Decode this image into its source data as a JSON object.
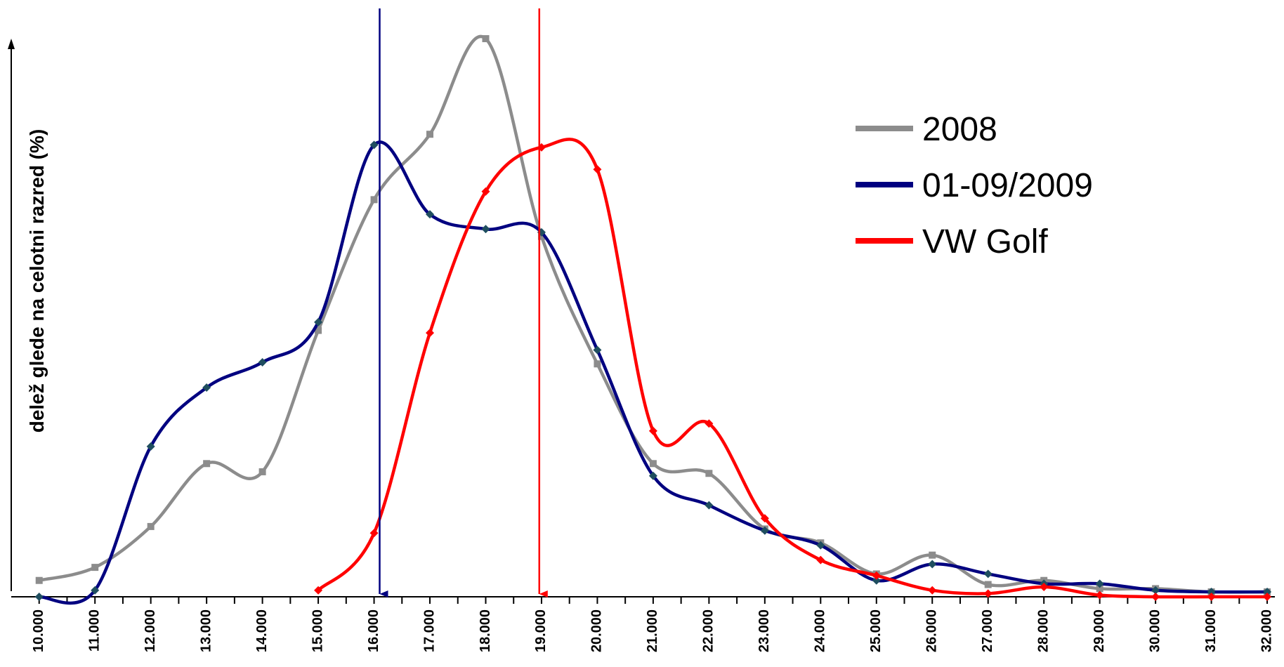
{
  "chart_data": {
    "type": "line",
    "y_label": "delež glede na celotni razred (%)",
    "x": [
      10000,
      11000,
      12000,
      13000,
      14000,
      15000,
      16000,
      17000,
      18000,
      19000,
      20000,
      21000,
      22000,
      23000,
      24000,
      25000,
      26000,
      27000,
      28000,
      29000,
      30000,
      31000,
      32000
    ],
    "xlim": [
      9500,
      32100
    ],
    "xticks": [
      {
        "value": 10000,
        "label": "10.000"
      },
      {
        "value": 11000,
        "label": "11.000"
      },
      {
        "value": 12000,
        "label": "12.000"
      },
      {
        "value": 13000,
        "label": "13.000"
      },
      {
        "value": 14000,
        "label": "14.000"
      },
      {
        "value": 15000,
        "label": "15.000"
      },
      {
        "value": 16000,
        "label": "16.000"
      },
      {
        "value": 17000,
        "label": "17.000"
      },
      {
        "value": 18000,
        "label": "18.000"
      },
      {
        "value": 19000,
        "label": "19.000"
      },
      {
        "value": 20000,
        "label": "20.000"
      },
      {
        "value": 21000,
        "label": "21.000"
      },
      {
        "value": 22000,
        "label": "22.000"
      },
      {
        "value": 23000,
        "label": "23.000"
      },
      {
        "value": 24000,
        "label": "24.000"
      },
      {
        "value": 25000,
        "label": "25.000"
      },
      {
        "value": 26000,
        "label": "26.000"
      },
      {
        "value": 27000,
        "label": "27.000"
      },
      {
        "value": 28000,
        "label": "28.000"
      },
      {
        "value": 29000,
        "label": "29.000"
      },
      {
        "value": 30000,
        "label": "30.000"
      },
      {
        "value": 31000,
        "label": "31.000"
      },
      {
        "value": 32000,
        "label": "32.000"
      }
    ],
    "ylim": [
      0,
      7.2
    ],
    "series": [
      {
        "name": "2008",
        "color": "#8c8c8c",
        "marker": "square",
        "values": [
          0.2,
          0.36,
          0.86,
          1.63,
          1.53,
          3.26,
          4.86,
          5.66,
          6.83,
          4.41,
          2.85,
          1.63,
          1.51,
          0.83,
          0.66,
          0.28,
          0.51,
          0.15,
          0.2,
          0.1,
          0.1,
          0.06,
          0.06
        ]
      },
      {
        "name": "01-09/2009",
        "color": "#000080",
        "marker": "diamond",
        "values": [
          0,
          0.08,
          1.84,
          2.56,
          2.87,
          3.36,
          5.53,
          4.68,
          4.5,
          4.46,
          3.02,
          1.48,
          1.12,
          0.81,
          0.63,
          0.2,
          0.4,
          0.28,
          0.16,
          0.16,
          0.08,
          0.06,
          0.06
        ]
      },
      {
        "name": "VW Golf",
        "color": "#ff0000",
        "marker": "diamond",
        "values": [
          null,
          null,
          null,
          null,
          null,
          0.08,
          0.78,
          3.23,
          4.96,
          5.5,
          5.23,
          2.03,
          2.12,
          0.96,
          0.45,
          0.26,
          0.08,
          0.04,
          0.12,
          0.02,
          0,
          0,
          0
        ]
      }
    ],
    "markers": [
      {
        "x": 16100,
        "color": "#000080"
      },
      {
        "x": 18960,
        "color": "#ff0000"
      }
    ]
  }
}
